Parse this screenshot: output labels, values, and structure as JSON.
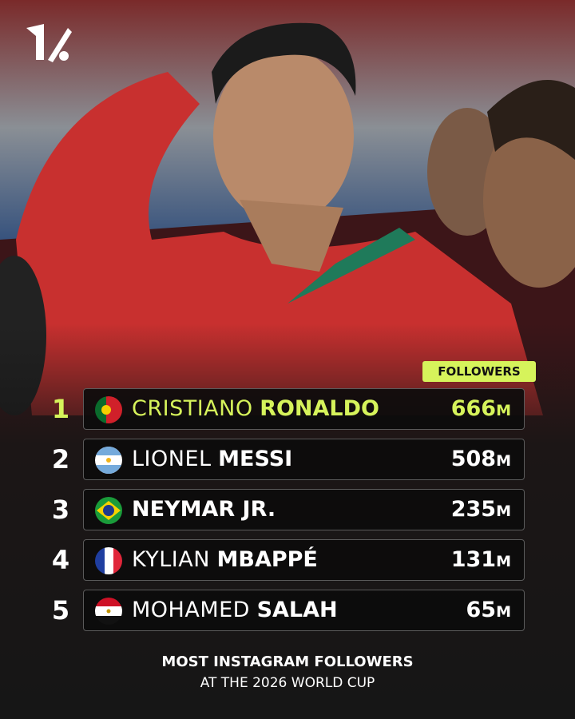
{
  "footer": {
    "line1": "MOST INSTAGRAM FOLLOWERS",
    "line2": "AT THE 2026 WORLD CUP"
  },
  "table": {
    "header": "FOLLOWERS",
    "rows": [
      {
        "rank": 1,
        "light": "CRISTIANO",
        "bold": "RONALDO",
        "value": 666,
        "unit": "M"
      },
      {
        "rank": 2,
        "light": "LIONEL",
        "bold": "MESSI",
        "value": 508,
        "unit": "M"
      },
      {
        "rank": 3,
        "bold": "NEYMAR JR.",
        "value": 235,
        "unit": "M"
      },
      {
        "rank": 4,
        "light": "KYLIAN",
        "bold": "MBAPPÉ",
        "value": 131,
        "unit": "M"
      },
      {
        "rank": 5,
        "light": "MOHAMED",
        "bold": "SALAH",
        "value": 65,
        "unit": "M"
      }
    ]
  }
}
